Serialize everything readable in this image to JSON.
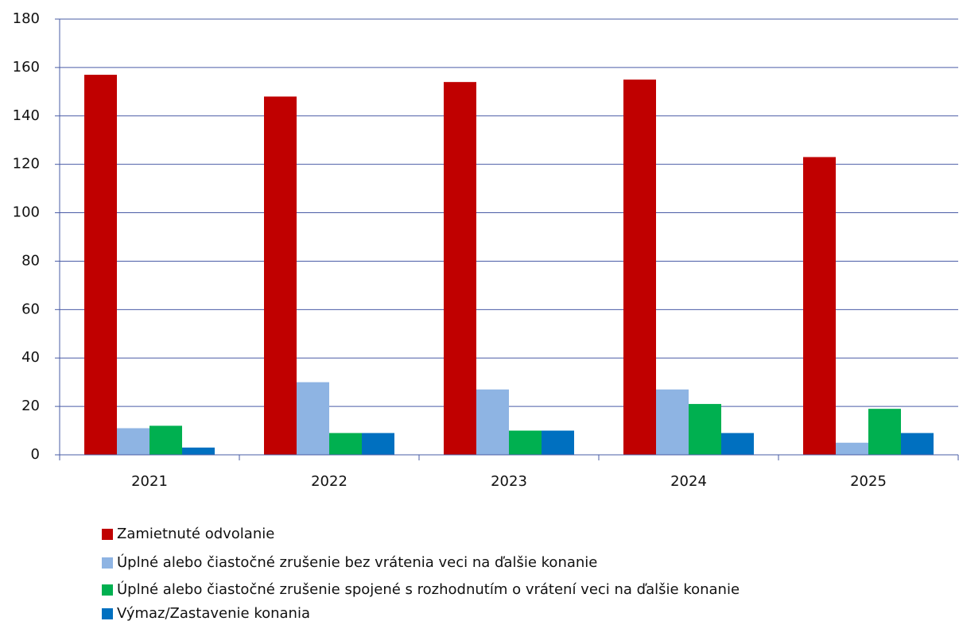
{
  "chart_data": {
    "type": "bar",
    "categories": [
      "2021",
      "2022",
      "2023",
      "2024",
      "2025"
    ],
    "series": [
      {
        "name": "Zamietnuté odvolanie",
        "color": "#c00000",
        "values": [
          157,
          148,
          154,
          155,
          123
        ]
      },
      {
        "name": "Úplné alebo čiastočné zrušenie bez vrátenia veci na ďalšie konanie",
        "color": "#8eb4e3",
        "values": [
          11,
          30,
          27,
          27,
          5
        ]
      },
      {
        "name": "Úplné alebo čiastočné zrušenie spojené s rozhodnutím o vrátení veci na ďalšie konanie",
        "color": "#00b050",
        "values": [
          12,
          9,
          10,
          21,
          19
        ]
      },
      {
        "name": "Výmaz/Zastavenie konania",
        "color": "#0070c0",
        "values": [
          3,
          9,
          10,
          9,
          9
        ]
      }
    ],
    "ylim": [
      0,
      180
    ],
    "yticks": [
      0,
      20,
      40,
      60,
      80,
      100,
      120,
      140,
      160,
      180
    ],
    "grid": true,
    "legend": "bottom"
  }
}
